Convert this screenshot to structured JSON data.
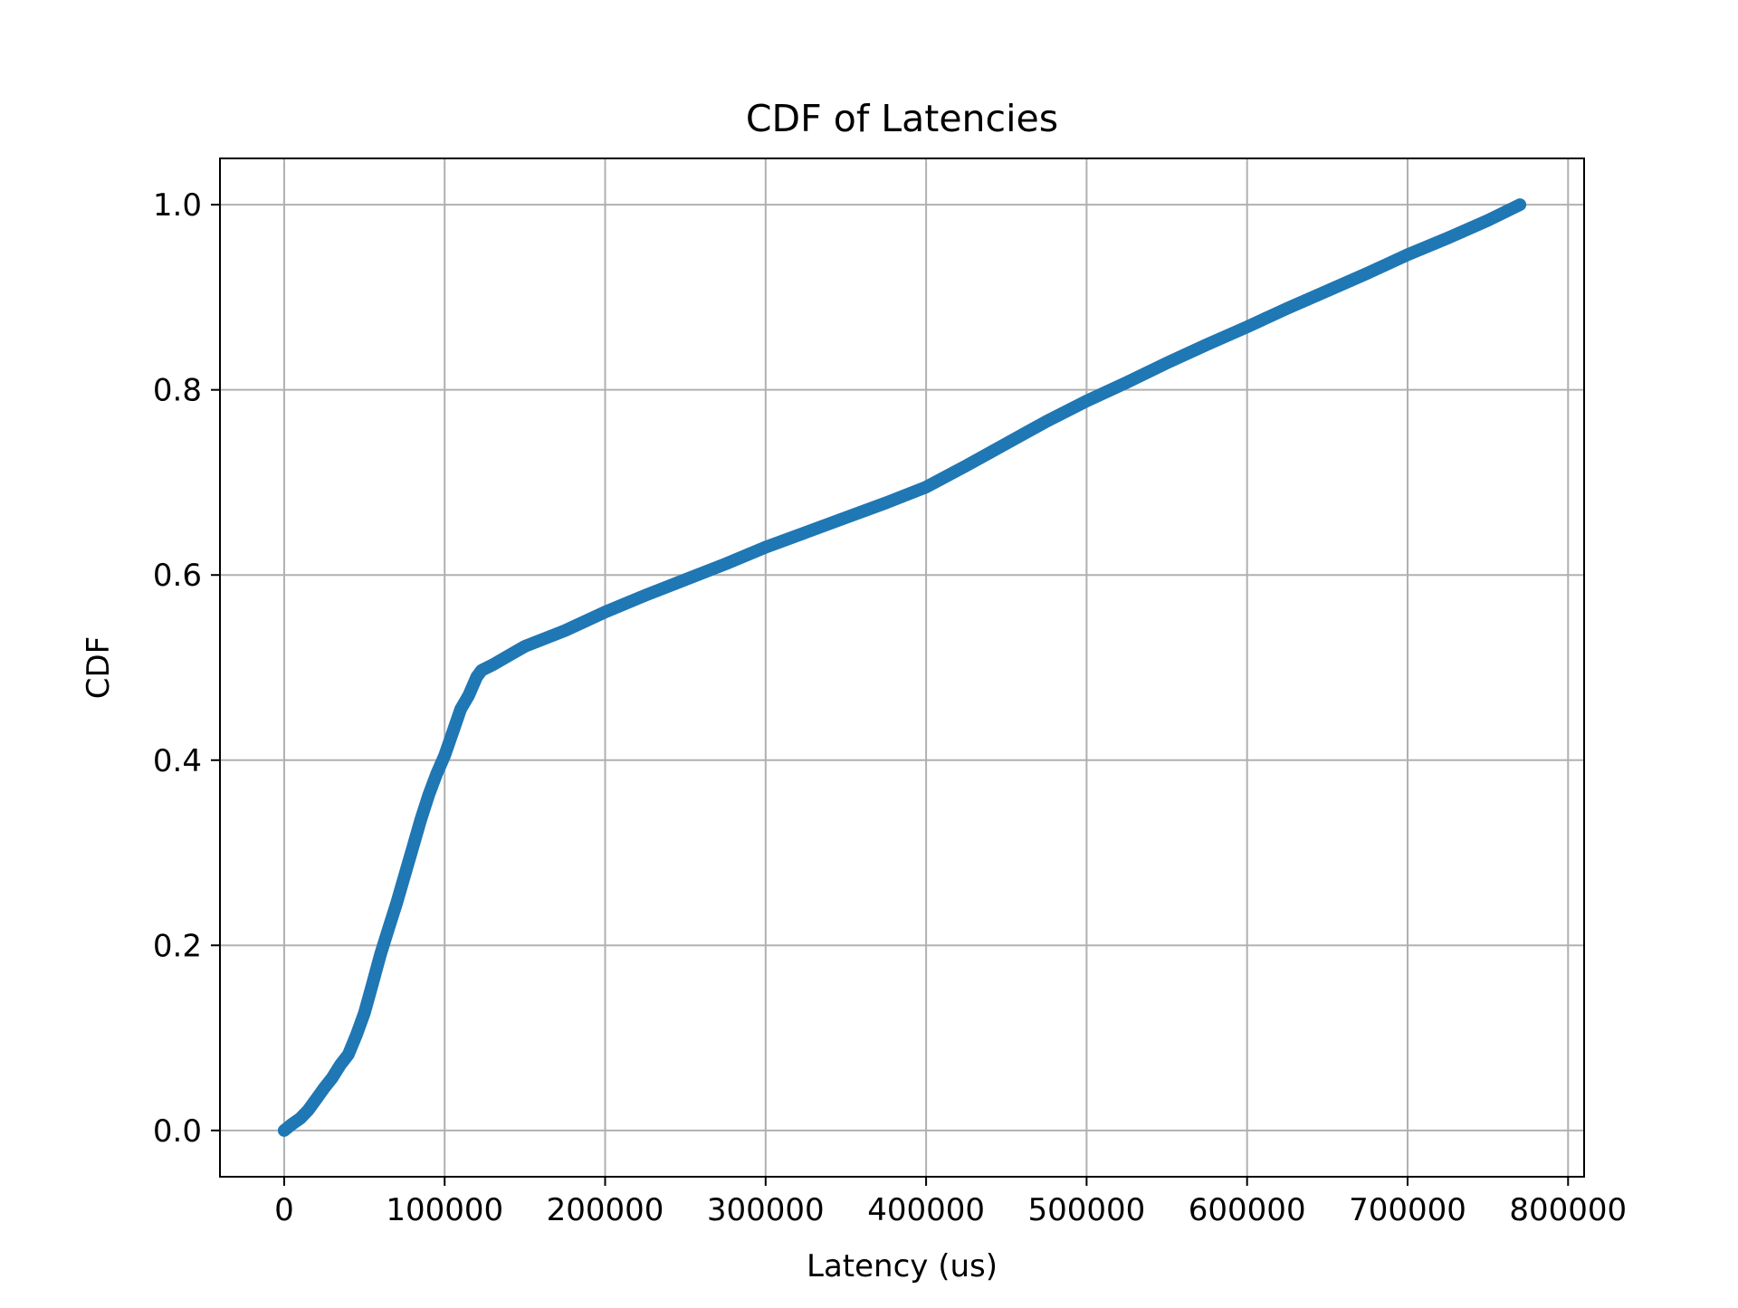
{
  "chart_data": {
    "type": "line",
    "title": "CDF of Latencies",
    "xlabel": "Latency (us)",
    "ylabel": "CDF",
    "xlim": [
      -40000,
      810000
    ],
    "ylim": [
      -0.05,
      1.05
    ],
    "xticks": [
      0,
      100000,
      200000,
      300000,
      400000,
      500000,
      600000,
      700000,
      800000
    ],
    "xtick_labels": [
      "0",
      "100000",
      "200000",
      "300000",
      "400000",
      "500000",
      "600000",
      "700000",
      "800000"
    ],
    "yticks": [
      0.0,
      0.2,
      0.4,
      0.6,
      0.8,
      1.0
    ],
    "ytick_labels": [
      "0.0",
      "0.2",
      "0.4",
      "0.6",
      "0.8",
      "1.0"
    ],
    "grid": true,
    "series_color": "#1f77b4",
    "series": [
      {
        "x": [
          0,
          5000,
          10000,
          15000,
          20000,
          25000,
          30000,
          35000,
          40000,
          45000,
          50000,
          55000,
          60000,
          65000,
          70000,
          75000,
          80000,
          85000,
          90000,
          95000,
          100000,
          105000,
          110000,
          115000,
          120000,
          123000,
          130000,
          140000,
          150000,
          175000,
          200000,
          225000,
          250000,
          275000,
          300000,
          325000,
          350000,
          375000,
          400000,
          425000,
          450000,
          475000,
          500000,
          525000,
          550000,
          575000,
          600000,
          625000,
          650000,
          675000,
          700000,
          725000,
          750000,
          770000
        ],
        "y": [
          0.0,
          0.007,
          0.013,
          0.022,
          0.034,
          0.046,
          0.057,
          0.071,
          0.082,
          0.103,
          0.127,
          0.158,
          0.19,
          0.218,
          0.245,
          0.275,
          0.305,
          0.335,
          0.362,
          0.385,
          0.405,
          0.43,
          0.455,
          0.47,
          0.49,
          0.497,
          0.503,
          0.513,
          0.523,
          0.54,
          0.56,
          0.578,
          0.595,
          0.612,
          0.63,
          0.646,
          0.662,
          0.678,
          0.695,
          0.718,
          0.742,
          0.766,
          0.788,
          0.808,
          0.829,
          0.849,
          0.868,
          0.888,
          0.907,
          0.926,
          0.946,
          0.964,
          0.983,
          1.0
        ]
      }
    ]
  }
}
